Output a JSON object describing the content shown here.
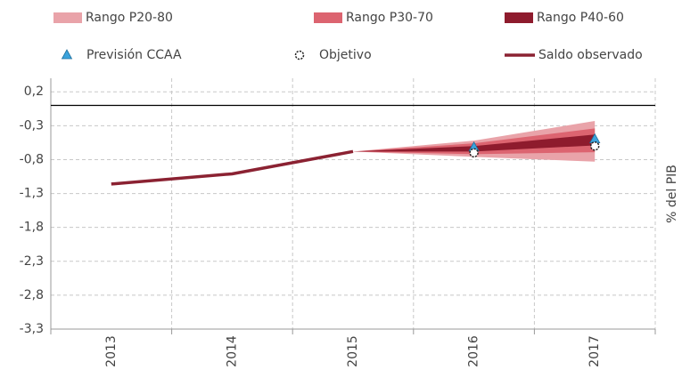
{
  "chart_data": {
    "type": "fan",
    "categories": [
      "2013",
      "2014",
      "2015",
      "2016",
      "2017"
    ],
    "ylabel": "% del PIB",
    "ylim": [
      -3.3,
      0.4
    ],
    "yticks": [
      {
        "value": 0.2,
        "label": "0,2"
      },
      {
        "value": -0.3,
        "label": "-0,3"
      },
      {
        "value": -0.8,
        "label": "-0,8"
      },
      {
        "value": -1.3,
        "label": "-1,3"
      },
      {
        "value": -1.8,
        "label": "-1,8"
      },
      {
        "value": -2.3,
        "label": "-2,3"
      },
      {
        "value": -2.8,
        "label": "-2,8"
      },
      {
        "value": -3.3,
        "label": "-3,3"
      }
    ],
    "grid": true,
    "series": [
      {
        "name": "Rango P20-80",
        "kind": "band",
        "color": "#e9a3a9",
        "low": [
          null,
          null,
          -0.68,
          -0.76,
          -0.83
        ],
        "high": [
          null,
          null,
          -0.68,
          -0.52,
          -0.23
        ]
      },
      {
        "name": "Rango P30-70",
        "kind": "band",
        "color": "#dc6470",
        "low": [
          null,
          null,
          -0.68,
          -0.72,
          -0.69
        ],
        "high": [
          null,
          null,
          -0.68,
          -0.56,
          -0.34
        ]
      },
      {
        "name": "Rango P40-60",
        "kind": "band",
        "color": "#8e1b2d",
        "low": [
          null,
          null,
          -0.68,
          -0.68,
          -0.59
        ],
        "high": [
          null,
          null,
          -0.68,
          -0.6,
          -0.43
        ]
      },
      {
        "name": "Previsión CCAA",
        "kind": "marker",
        "marker": "triangle",
        "color": "#3ba3dc",
        "values": [
          null,
          null,
          null,
          -0.62,
          -0.5
        ]
      },
      {
        "name": "Objetivo",
        "kind": "marker",
        "marker": "circle",
        "color": "#ffffff",
        "values": [
          null,
          null,
          null,
          -0.7,
          -0.6
        ]
      },
      {
        "name": "Saldo observado",
        "kind": "line",
        "color": "#8b2232",
        "values": [
          -1.16,
          -1.01,
          -0.68,
          null,
          null
        ]
      }
    ]
  }
}
